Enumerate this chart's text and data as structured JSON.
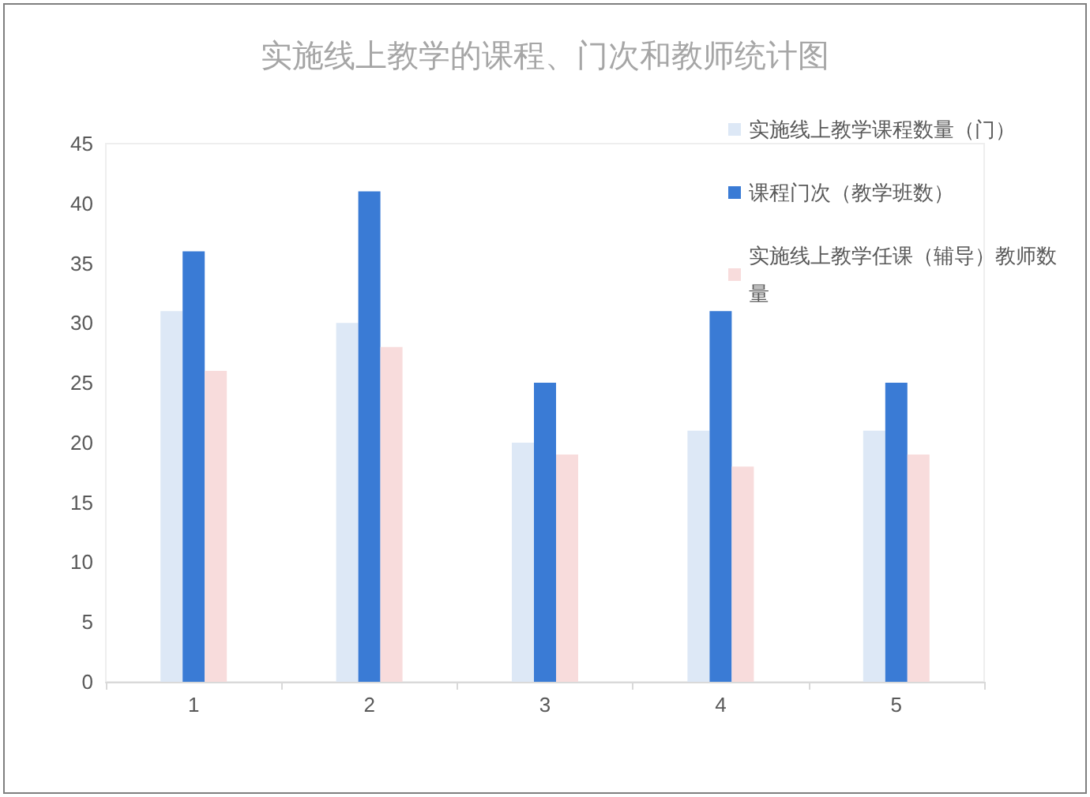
{
  "chart_data": {
    "type": "bar",
    "title": "实施线上教学的课程、门次和教师统计图",
    "categories": [
      "1",
      "2",
      "3",
      "4",
      "5"
    ],
    "series": [
      {
        "name": "实施线上教学课程数量（门）",
        "color": "#dde8f6",
        "values": [
          31,
          30,
          20,
          21,
          21
        ]
      },
      {
        "name": "课程门次（教学班数）",
        "color": "#3a7bd5",
        "values": [
          36,
          41,
          25,
          31,
          25
        ]
      },
      {
        "name": "实施线上教学任课（辅导）教师数量",
        "color": "#f8dcdc",
        "values": [
          26,
          28,
          19,
          18,
          19
        ]
      }
    ],
    "ylim": [
      0,
      45
    ],
    "yticks": [
      0,
      5,
      10,
      15,
      20,
      25,
      30,
      35,
      40,
      45
    ],
    "grid": false,
    "legend": "top right"
  }
}
